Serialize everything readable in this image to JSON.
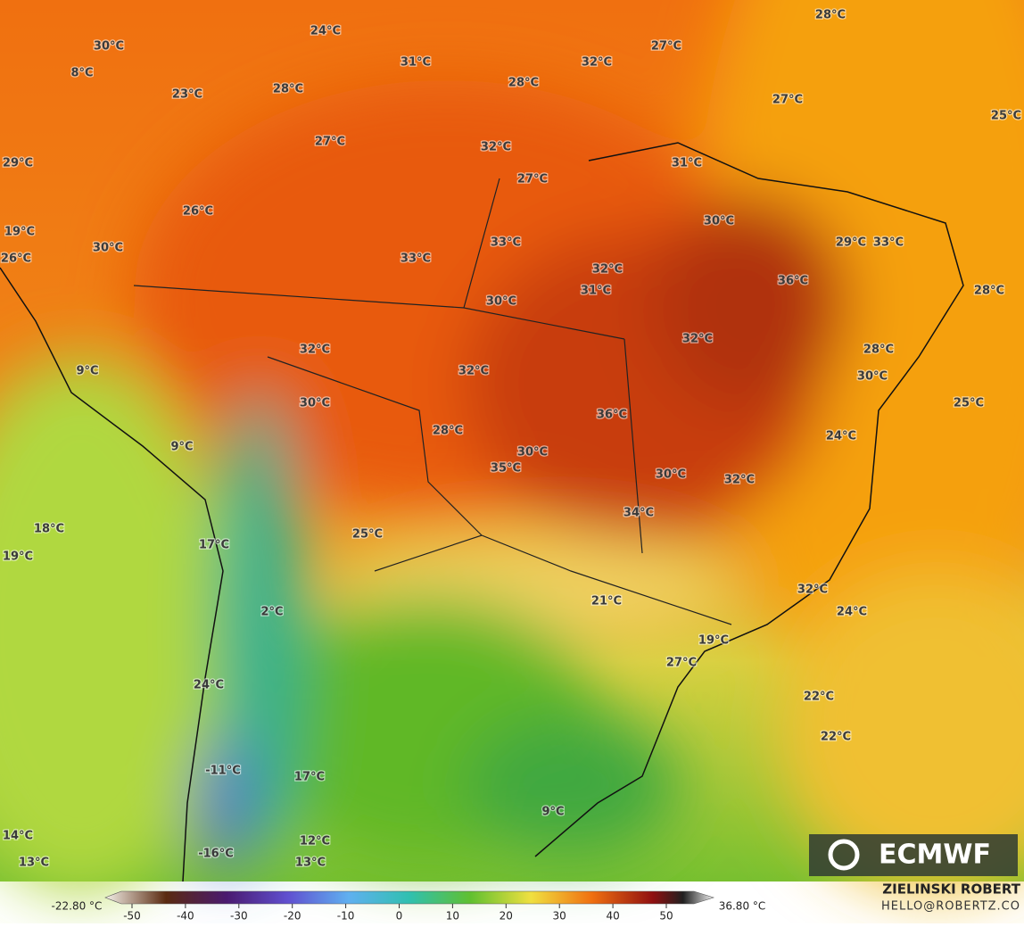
{
  "map": {
    "labels": [
      "24°C",
      "28°C",
      "30°C",
      "31°C",
      "32°C",
      "27°C",
      "8°C",
      "28°C",
      "28°C",
      "23°C",
      "27°C",
      "25°C",
      "27°C",
      "32°C",
      "31°C",
      "29°C",
      "27°C",
      "26°C",
      "30°C",
      "19°C",
      "29°C",
      "33°C",
      "33°C",
      "30°C",
      "26°C",
      "33°C",
      "32°C",
      "36°C",
      "31°C",
      "28°C",
      "30°C",
      "32°C",
      "32°C",
      "28°C",
      "9°C",
      "32°C",
      "30°C",
      "30°C",
      "25°C",
      "36°C",
      "28°C",
      "24°C",
      "9°C",
      "30°C",
      "35°C",
      "30°C",
      "32°C",
      "34°C",
      "18°C",
      "25°C",
      "17°C",
      "19°C",
      "32°C",
      "21°C",
      "2°C",
      "24°C",
      "19°C",
      "27°C",
      "24°C",
      "22°C",
      "22°C",
      "-11°C",
      "17°C",
      "9°C",
      "14°C",
      "12°C",
      "-16°C",
      "13°C",
      "13°C"
    ],
    "logo": "ECMWF"
  },
  "colorbar": {
    "min_label": "-22.80 °C",
    "max_label": "36.80 °C",
    "ticks": [
      -50,
      -40,
      -30,
      -20,
      -10,
      0,
      10,
      20,
      30,
      40,
      50
    ]
  },
  "credits": {
    "author": "ZIELINSKI ROBERT",
    "email": "HELLO@ROBERTZ.CO"
  }
}
